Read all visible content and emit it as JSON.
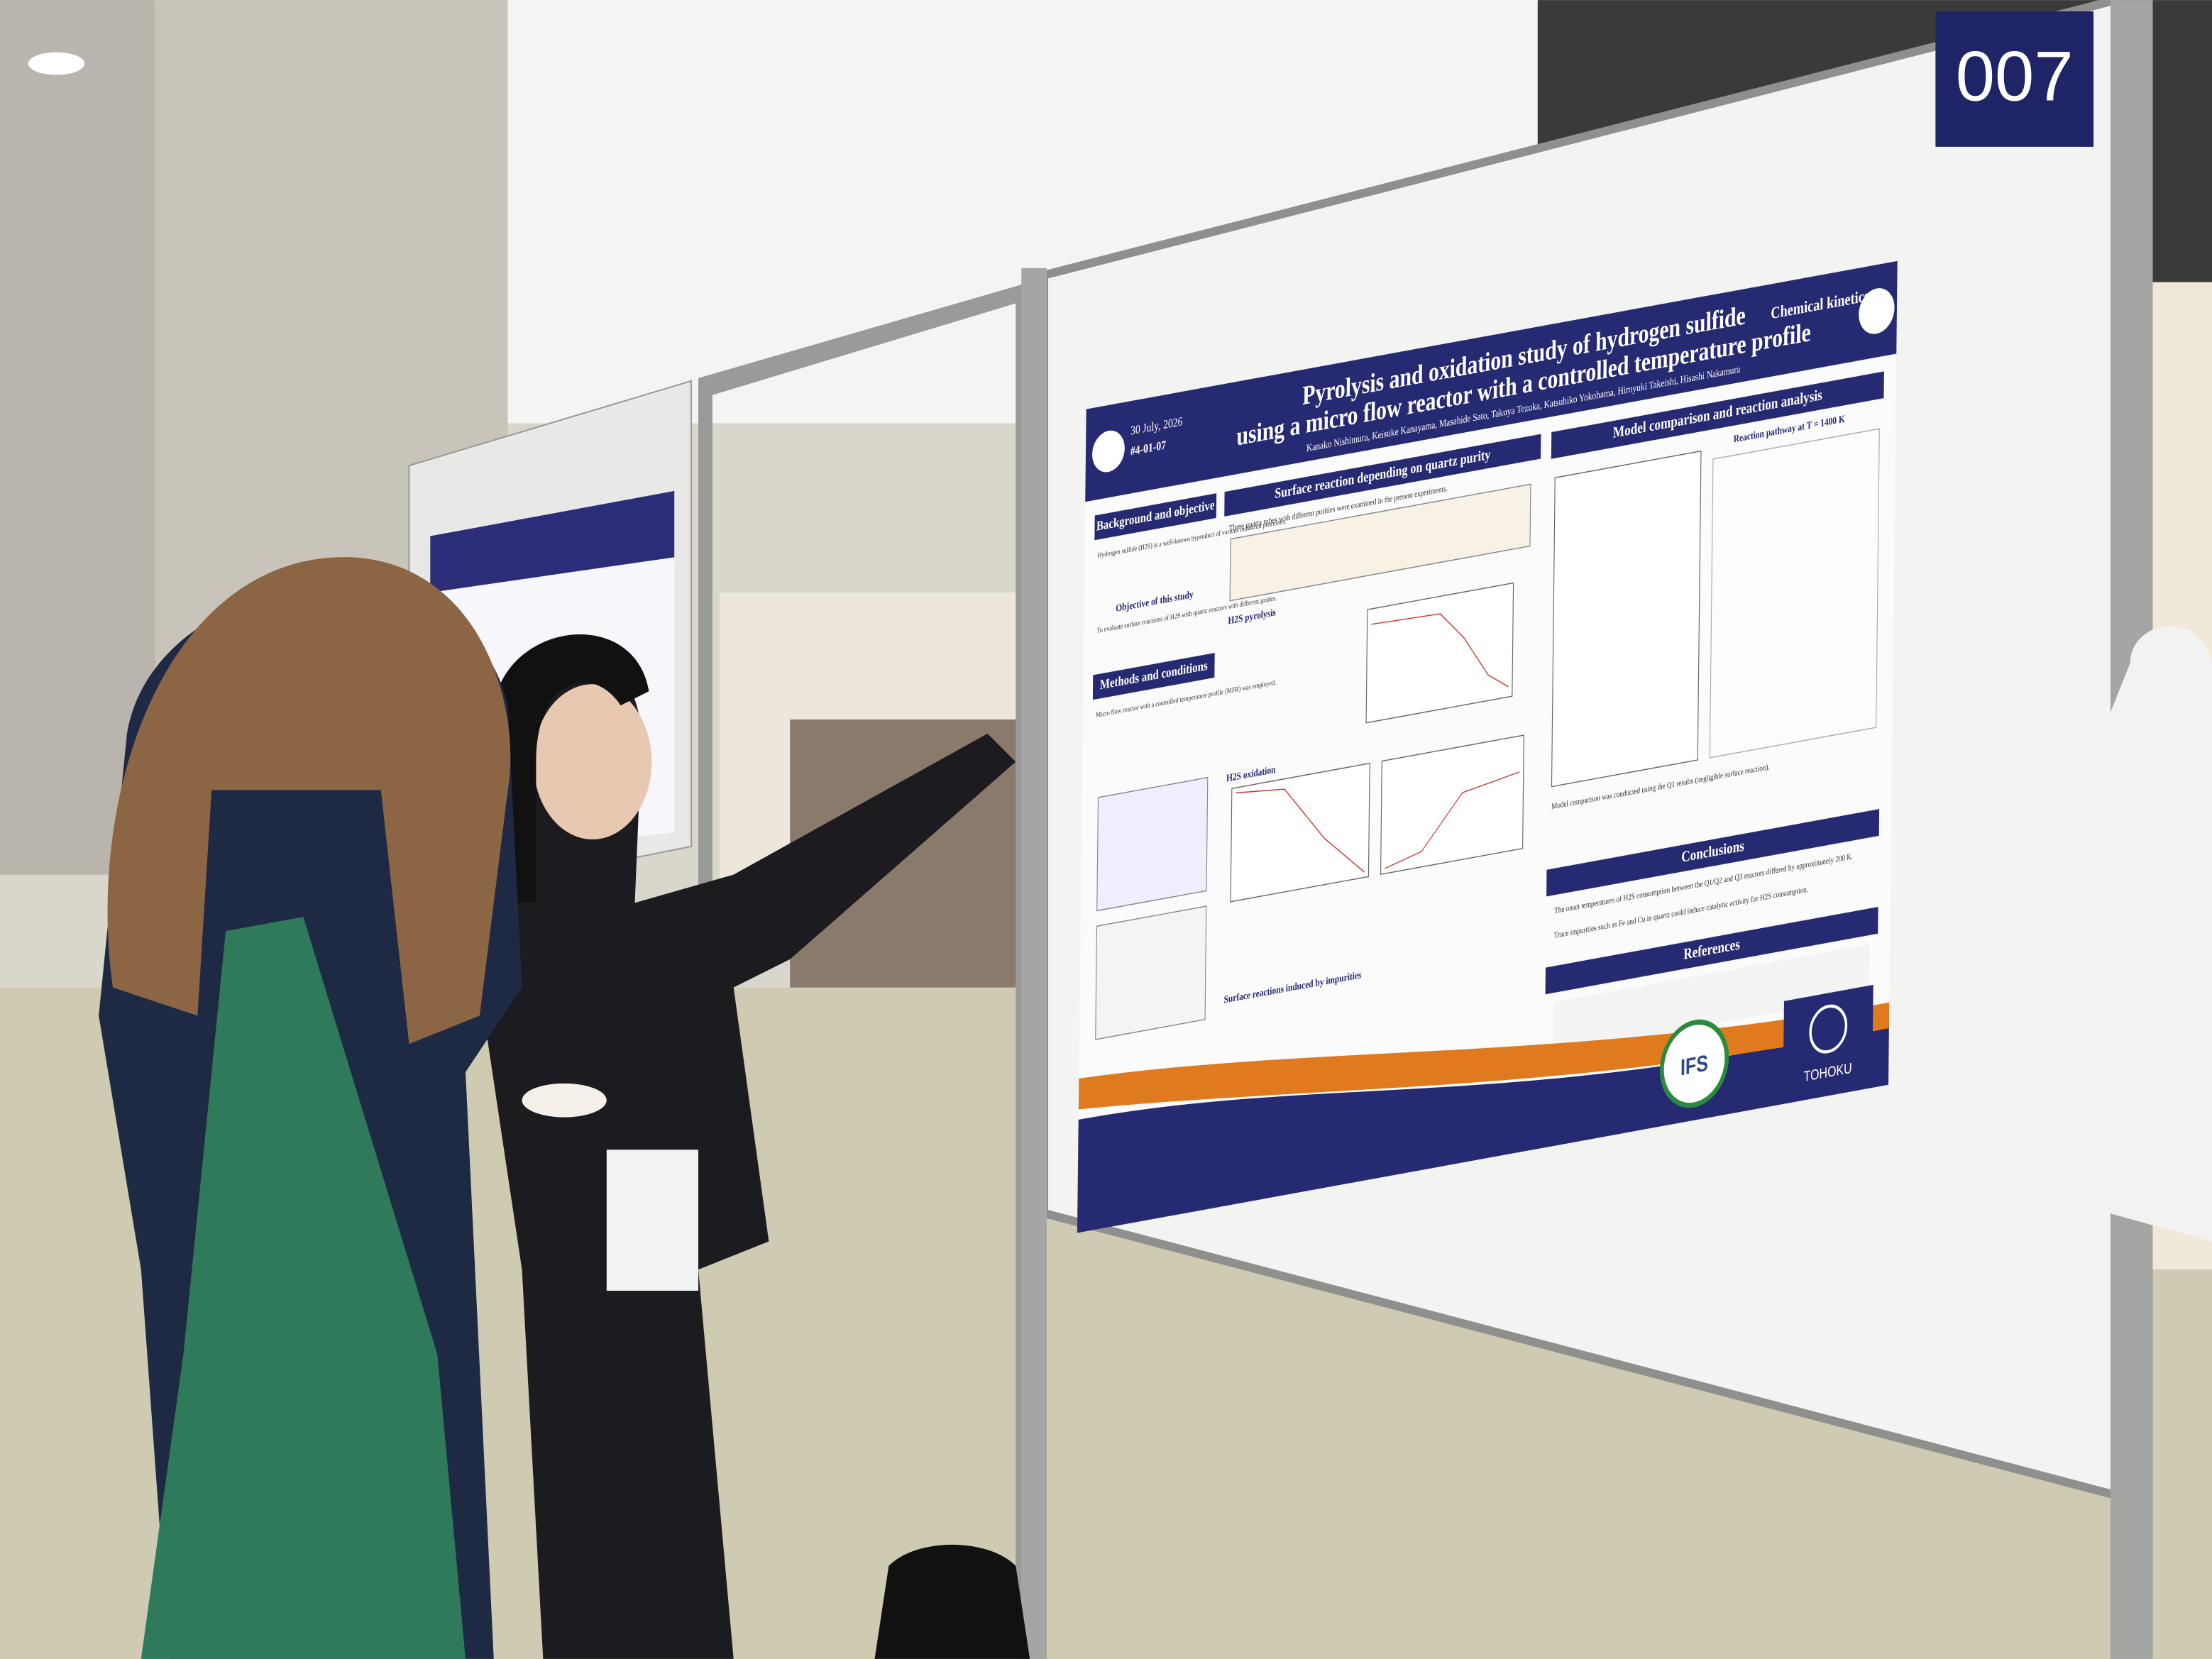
{
  "board_number": "007",
  "poster": {
    "date": "30 July, 2026",
    "code": "#4-01-07",
    "title_line1": "Pyrolysis and oxidation study of hydrogen sulfide",
    "title_line2": "using a micro flow reactor with a controlled temperature profile",
    "authors": "Kanako Nishimura, Keisuke Kanayama, Masahide Sato, Takuya Tezuka, Katsuhiko Yokohama, Hiroyuki Takeishi, Hisashi Nakamura",
    "category": "Chemical kinetics",
    "background": {
      "heading": "Background and objective",
      "text": "Hydrogen sulfide (H2S) is a well-known byproduct of various industrial processes.",
      "subheading": "Objective of this study",
      "objective": "To evaluate surface reactions of H2S with quartz reactors with different grades."
    },
    "methods": {
      "heading": "Methods and conditions",
      "text": "Micro flow reactor with a controlled temperature profile (MFR) was employed."
    },
    "surface": {
      "heading": "Surface reaction depending on quartz purity",
      "intro": "Three quartz tubes with different purities were examined in the present experiments.",
      "pyrolysis": "H2S pyrolysis",
      "oxidation": "H2S oxidation",
      "impurities": "Surface reactions induced by impurities"
    },
    "model": {
      "heading": "Model comparison and reaction analysis",
      "pathway": "Reaction pathway at T = 1400 K",
      "text": "Model comparison was conducted using the Q1 results (negligible surface reaction)."
    },
    "conclusions": {
      "heading": "Conclusions",
      "items": [
        "The onset temperatures of H2S consumption between the Q1/Q2 and Q3 reactors differed by approximately 200 K.",
        "Trace impurities such as Fe and Cu in quartz could induce catalytic activity for H2S consumption."
      ]
    },
    "references": {
      "heading": "References"
    },
    "logo_ifs": "IFS",
    "logo_university": "TOHOKU"
  }
}
